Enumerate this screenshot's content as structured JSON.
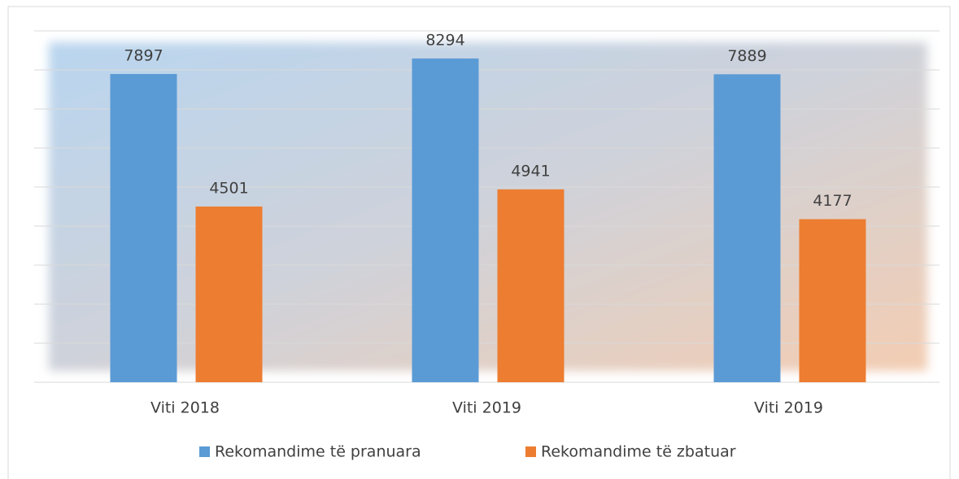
{
  "chart_data": {
    "type": "bar",
    "categories": [
      "Viti 2018",
      "Viti 2019",
      "Viti 2019"
    ],
    "series": [
      {
        "name": "Rekomandime të pranuara",
        "color": "#5b9bd5",
        "values": [
          7897,
          8294,
          7889
        ]
      },
      {
        "name": "Rekomandime të zbatuar",
        "color": "#ed7d31",
        "values": [
          4501,
          4941,
          4177
        ]
      }
    ],
    "ylim": [
      0,
      9000
    ],
    "yticks": [
      0,
      1000,
      2000,
      3000,
      4000,
      5000,
      6000,
      7000,
      8000,
      9000
    ],
    "grid": true,
    "legend": "bottom"
  }
}
